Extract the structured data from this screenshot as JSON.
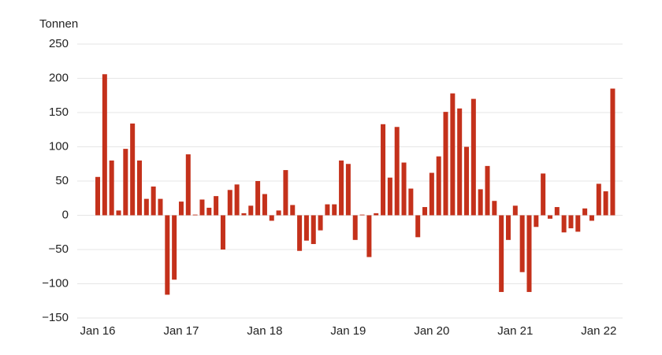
{
  "chart_data": {
    "type": "bar",
    "y_label": "Tonnen",
    "color": "#c4311b",
    "grid": true,
    "categories": [
      "Jan 16",
      null,
      null,
      null,
      null,
      null,
      null,
      null,
      null,
      null,
      null,
      null,
      "Jan 17",
      null,
      null,
      null,
      null,
      null,
      null,
      null,
      null,
      null,
      null,
      null,
      "Jan 18",
      null,
      null,
      null,
      null,
      null,
      null,
      null,
      null,
      null,
      null,
      null,
      "Jan 19",
      null,
      null,
      null,
      null,
      null,
      null,
      null,
      null,
      null,
      null,
      null,
      "Jan 20",
      null,
      null,
      null,
      null,
      null,
      null,
      null,
      null,
      null,
      null,
      null,
      "Jan 21",
      null,
      null,
      null,
      null,
      null,
      null,
      null,
      null,
      null,
      null,
      null,
      "Jan 22",
      null,
      null
    ],
    "values": [
      56,
      206,
      80,
      7,
      97,
      134,
      80,
      24,
      42,
      24,
      -116,
      -94,
      20,
      89,
      1,
      23,
      11,
      28,
      -50,
      37,
      45,
      3,
      14,
      50,
      31,
      -8,
      7,
      66,
      15,
      -52,
      -37,
      -42,
      -22,
      16,
      16,
      80,
      75,
      -36,
      1,
      -61,
      3,
      133,
      55,
      129,
      77,
      39,
      -32,
      12,
      62,
      86,
      151,
      178,
      156,
      100,
      170,
      38,
      72,
      21,
      -112,
      -36,
      14,
      -83,
      -112,
      -17,
      61,
      -5,
      12,
      -25,
      -19,
      -24,
      10,
      -8,
      46,
      35,
      185
    ],
    "ylim": [
      -150,
      250
    ],
    "yticks": [
      {
        "value": -150,
        "label": "−150"
      },
      {
        "value": -100,
        "label": "−100"
      },
      {
        "value": -50,
        "label": "−50"
      },
      0,
      50,
      100,
      150,
      200,
      250
    ]
  }
}
